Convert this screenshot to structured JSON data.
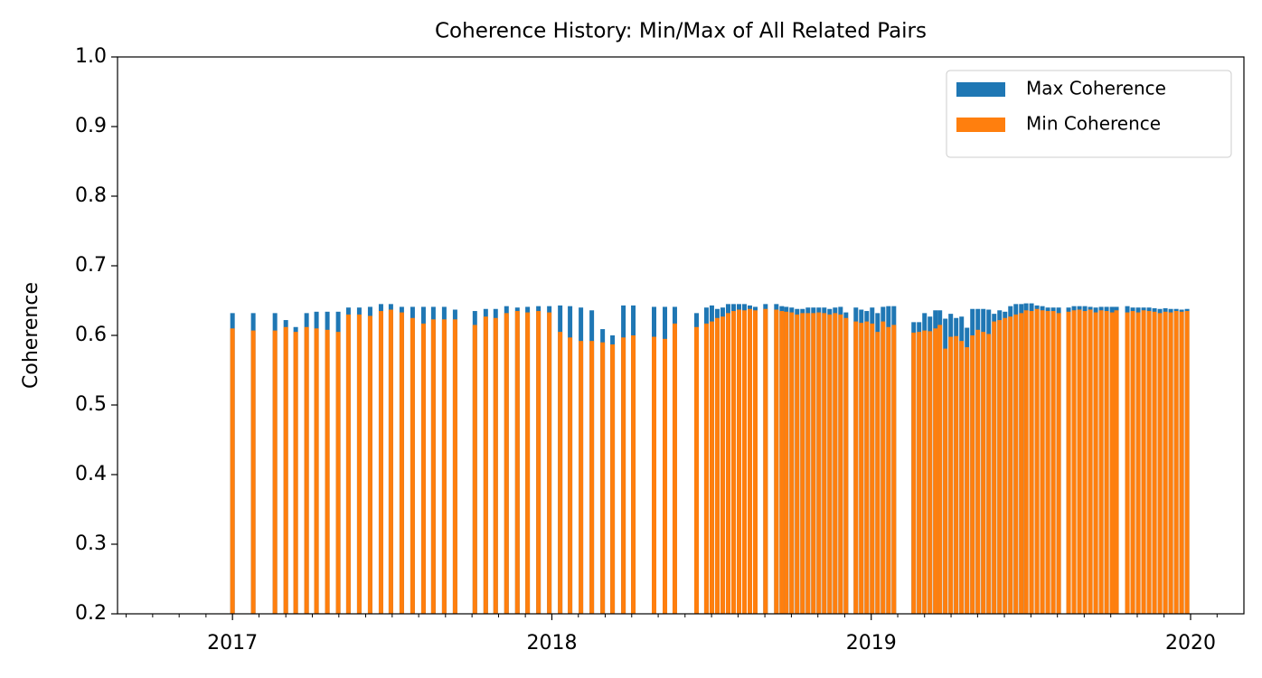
{
  "chart_data": {
    "type": "bar",
    "title": "Coherence History: Min/Max of All Related Pairs",
    "ylabel": "Coherence",
    "xlim": [
      2016.64,
      2020.167
    ],
    "xticks": [
      2017,
      2018,
      2019,
      2020
    ],
    "xminorticks": [
      2016.667,
      2016.75,
      2016.833,
      2016.917,
      2017.083,
      2017.167,
      2017.25,
      2017.333,
      2017.417,
      2017.5,
      2017.583,
      2017.667,
      2017.75,
      2017.833,
      2017.917,
      2018.083,
      2018.167,
      2018.25,
      2018.333,
      2018.417,
      2018.5,
      2018.583,
      2018.667,
      2018.75,
      2018.833,
      2018.917,
      2019.083,
      2019.167,
      2019.25,
      2019.333,
      2019.417,
      2019.5,
      2019.583,
      2019.667,
      2019.75,
      2019.833,
      2019.917,
      2020.083
    ],
    "ylim": [
      0.2,
      1
    ],
    "yticks": [
      0.2,
      0.3,
      0.4,
      0.5,
      0.6,
      0.7,
      0.8,
      0.9,
      {
        "value": 1,
        "label": "1.0"
      }
    ],
    "legend": "upper right",
    "x": [
      2017.0,
      2017.065,
      2017.133,
      2017.167,
      2017.198,
      2017.232,
      2017.263,
      2017.297,
      2017.331,
      2017.363,
      2017.397,
      2017.431,
      2017.465,
      2017.496,
      2017.53,
      2017.564,
      2017.598,
      2017.629,
      2017.663,
      2017.697,
      2017.759,
      2017.793,
      2017.824,
      2017.858,
      2017.892,
      2017.924,
      2017.958,
      2017.992,
      2018.026,
      2018.057,
      2018.091,
      2018.125,
      2018.159,
      2018.19,
      2018.224,
      2018.255,
      2018.32,
      2018.354,
      2018.385,
      2018.453,
      2018.484,
      2018.501,
      2018.518,
      2018.535,
      2018.552,
      2018.569,
      2018.586,
      2018.603,
      2018.62,
      2018.637,
      2018.669,
      2018.703,
      2018.72,
      2018.734,
      2018.751,
      2018.768,
      2018.785,
      2018.802,
      2018.819,
      2018.836,
      2018.853,
      2018.87,
      2018.887,
      2018.904,
      2018.921,
      2018.952,
      2018.969,
      2018.986,
      2019.003,
      2019.02,
      2019.037,
      2019.054,
      2019.071,
      2019.133,
      2019.15,
      2019.167,
      2019.184,
      2019.201,
      2019.215,
      2019.232,
      2019.249,
      2019.266,
      2019.283,
      2019.3,
      2019.317,
      2019.334,
      2019.351,
      2019.368,
      2019.385,
      2019.402,
      2019.419,
      2019.436,
      2019.453,
      2019.47,
      2019.485,
      2019.502,
      2019.519,
      2019.536,
      2019.553,
      2019.57,
      2019.587,
      2019.618,
      2019.635,
      2019.652,
      2019.669,
      2019.686,
      2019.703,
      2019.72,
      2019.737,
      2019.754,
      2019.768,
      2019.802,
      2019.819,
      2019.836,
      2019.853,
      2019.87,
      2019.887,
      2019.904,
      2019.921,
      2019.938,
      2019.955,
      2019.972,
      2019.989
    ],
    "series": [
      {
        "name": "Max Coherence",
        "color": "#1f77b4",
        "values": [
          0.632,
          0.632,
          0.632,
          0.622,
          0.612,
          0.632,
          0.634,
          0.634,
          0.634,
          0.64,
          0.64,
          0.641,
          0.645,
          0.645,
          0.641,
          0.641,
          0.641,
          0.641,
          0.641,
          0.637,
          0.635,
          0.638,
          0.638,
          0.642,
          0.64,
          0.641,
          0.642,
          0.642,
          0.643,
          0.642,
          0.64,
          0.636,
          0.609,
          0.6,
          0.643,
          0.643,
          0.641,
          0.641,
          0.641,
          0.632,
          0.64,
          0.643,
          0.638,
          0.64,
          0.645,
          0.645,
          0.645,
          0.645,
          0.643,
          0.641,
          0.645,
          0.645,
          0.642,
          0.641,
          0.64,
          0.638,
          0.638,
          0.64,
          0.64,
          0.64,
          0.64,
          0.638,
          0.64,
          0.641,
          0.633,
          0.64,
          0.637,
          0.635,
          0.64,
          0.632,
          0.641,
          0.642,
          0.642,
          0.619,
          0.619,
          0.632,
          0.627,
          0.636,
          0.636,
          0.624,
          0.631,
          0.625,
          0.627,
          0.611,
          0.638,
          0.638,
          0.638,
          0.637,
          0.631,
          0.636,
          0.634,
          0.642,
          0.645,
          0.645,
          0.646,
          0.646,
          0.643,
          0.642,
          0.64,
          0.64,
          0.64,
          0.64,
          0.642,
          0.642,
          0.642,
          0.641,
          0.64,
          0.641,
          0.641,
          0.641,
          0.641,
          0.642,
          0.64,
          0.64,
          0.64,
          0.64,
          0.639,
          0.638,
          0.639,
          0.638,
          0.638,
          0.637,
          0.638
        ]
      },
      {
        "name": "Min Coherence",
        "color": "#ff7f0e",
        "values": [
          0.61,
          0.607,
          0.607,
          0.612,
          0.605,
          0.612,
          0.61,
          0.608,
          0.605,
          0.63,
          0.63,
          0.628,
          0.635,
          0.637,
          0.633,
          0.625,
          0.617,
          0.623,
          0.623,
          0.623,
          0.615,
          0.627,
          0.625,
          0.632,
          0.635,
          0.633,
          0.635,
          0.633,
          0.605,
          0.597,
          0.592,
          0.592,
          0.59,
          0.587,
          0.597,
          0.6,
          0.598,
          0.595,
          0.617,
          0.612,
          0.617,
          0.62,
          0.625,
          0.627,
          0.632,
          0.635,
          0.637,
          0.636,
          0.638,
          0.636,
          0.638,
          0.637,
          0.635,
          0.634,
          0.633,
          0.63,
          0.632,
          0.632,
          0.632,
          0.633,
          0.632,
          0.63,
          0.632,
          0.63,
          0.625,
          0.62,
          0.618,
          0.62,
          0.617,
          0.605,
          0.62,
          0.612,
          0.615,
          0.604,
          0.605,
          0.607,
          0.606,
          0.61,
          0.615,
          0.581,
          0.598,
          0.599,
          0.592,
          0.583,
          0.6,
          0.608,
          0.605,
          0.602,
          0.62,
          0.622,
          0.625,
          0.627,
          0.63,
          0.632,
          0.636,
          0.635,
          0.638,
          0.636,
          0.635,
          0.635,
          0.632,
          0.634,
          0.636,
          0.637,
          0.635,
          0.637,
          0.633,
          0.636,
          0.635,
          0.633,
          0.636,
          0.633,
          0.635,
          0.633,
          0.636,
          0.635,
          0.634,
          0.632,
          0.634,
          0.633,
          0.635,
          0.634,
          0.635
        ]
      }
    ]
  }
}
